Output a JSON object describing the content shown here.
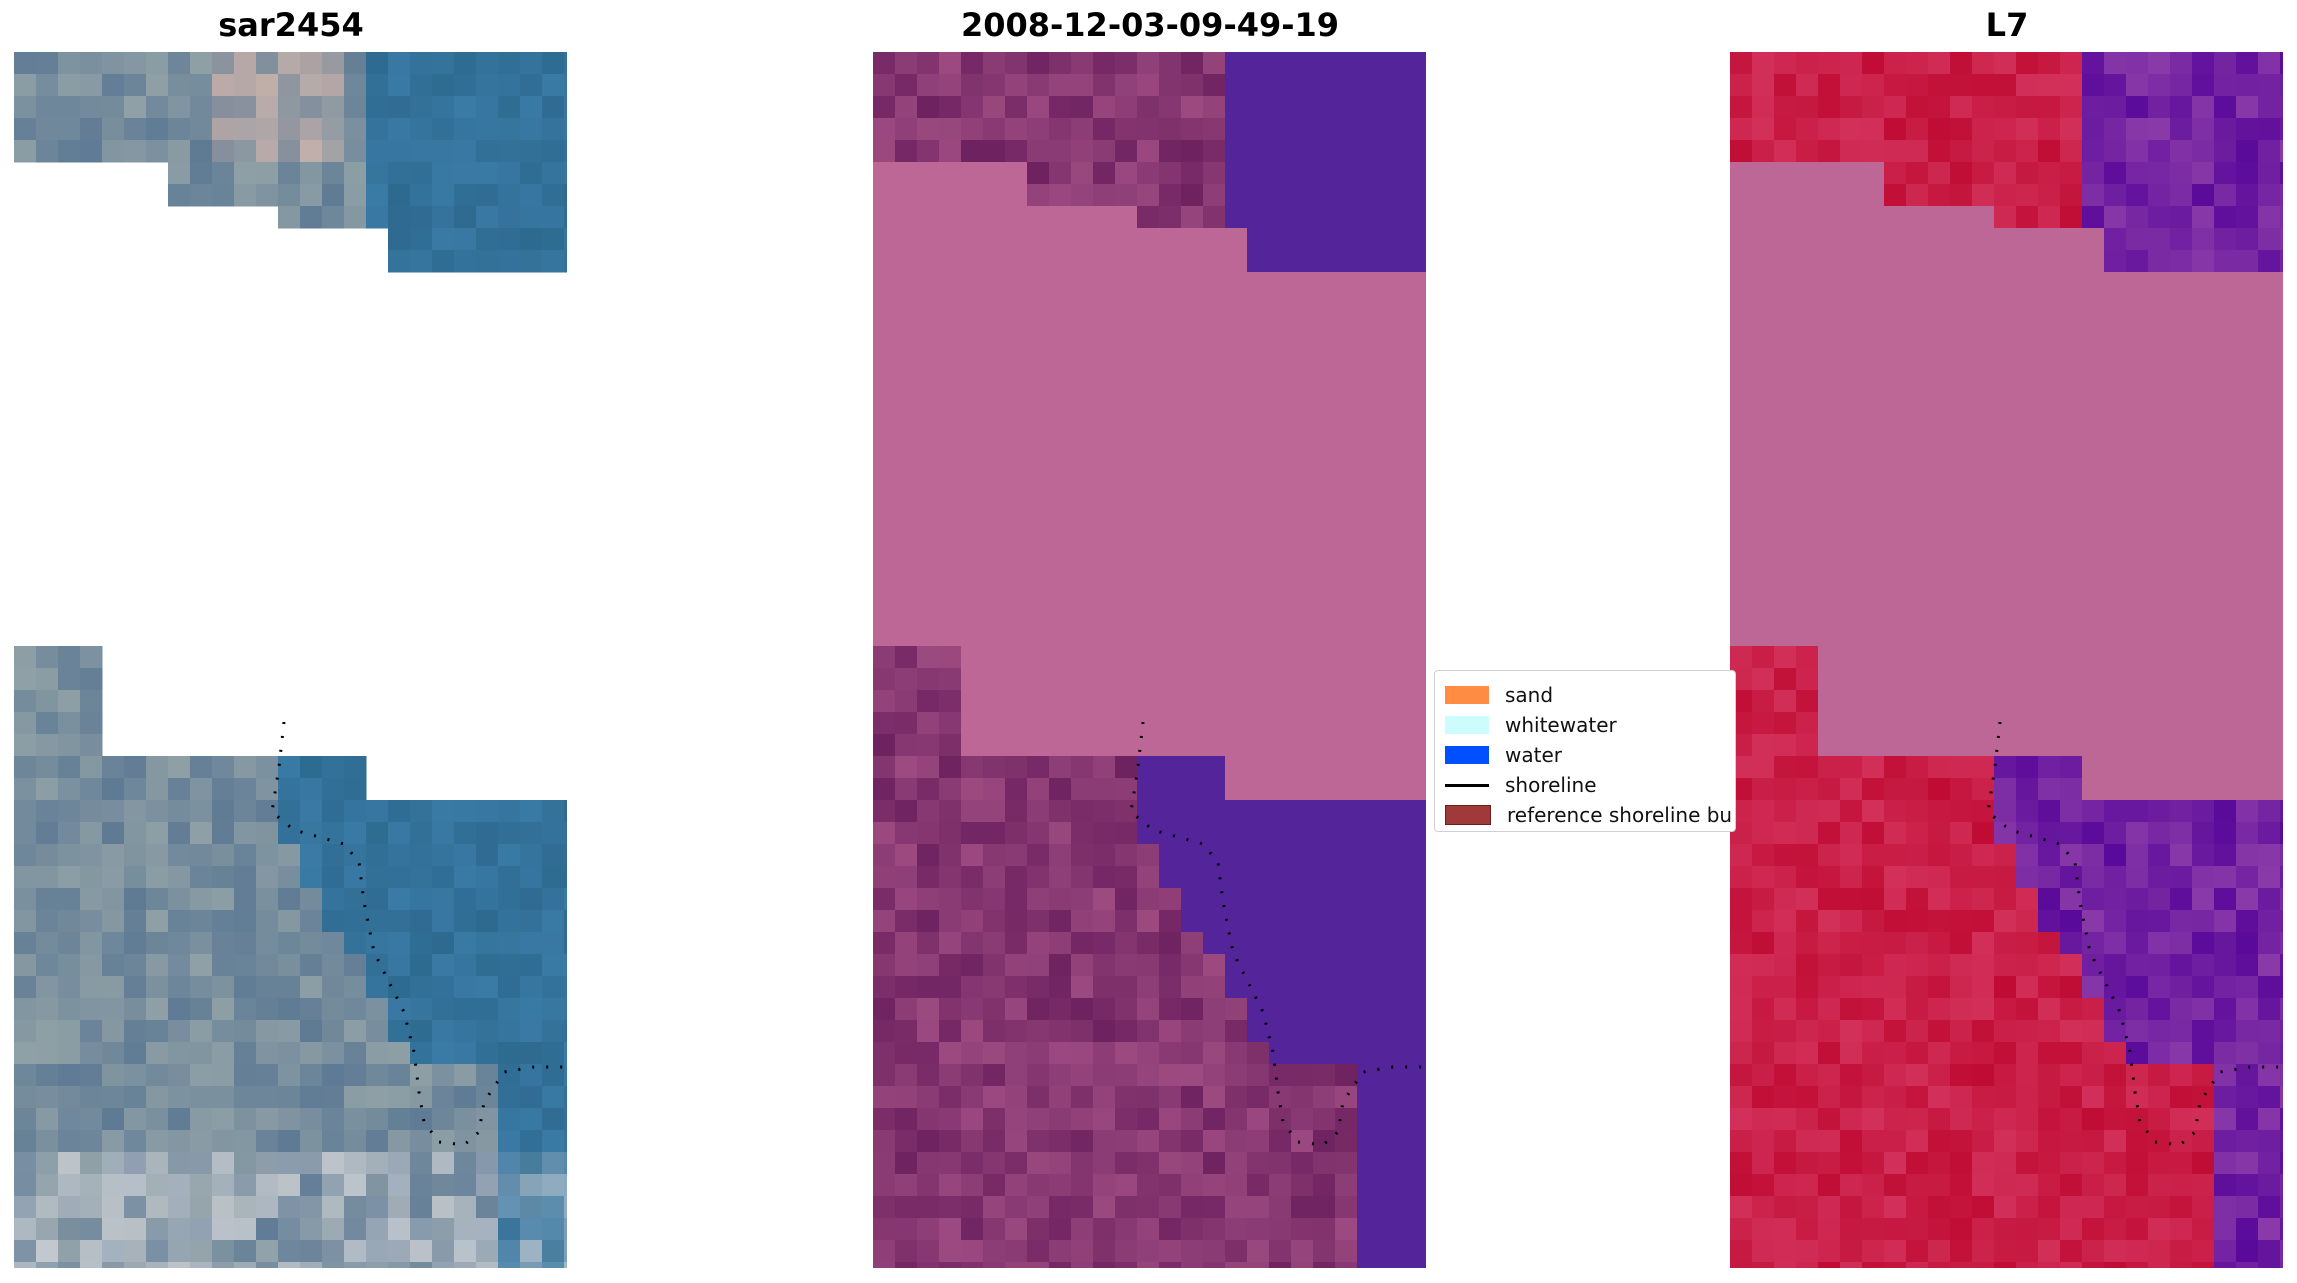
{
  "panels": {
    "left_title": "sar2454",
    "middle_title": "2008-12-03-09-49-19",
    "right_title": "L7"
  },
  "legend": {
    "items": [
      {
        "label": "sand",
        "color": "#ff8c42"
      },
      {
        "label": "whitewater",
        "color": "#ccfdfc"
      },
      {
        "label": "water",
        "color": "#0050ff"
      },
      {
        "label": "shoreline",
        "color": "#000000"
      },
      {
        "label": "reference shoreline bu",
        "color": "#a03a3a"
      }
    ]
  },
  "colors": {
    "rgb_water": "#3f7ea6",
    "rgb_land": "#6a7e98",
    "class_land": "#7a2a63",
    "class_water": "#54249a",
    "nodata": "#bd6796",
    "ndwi_land": "#c41038",
    "ndwi_water": "#6a0aa0"
  }
}
